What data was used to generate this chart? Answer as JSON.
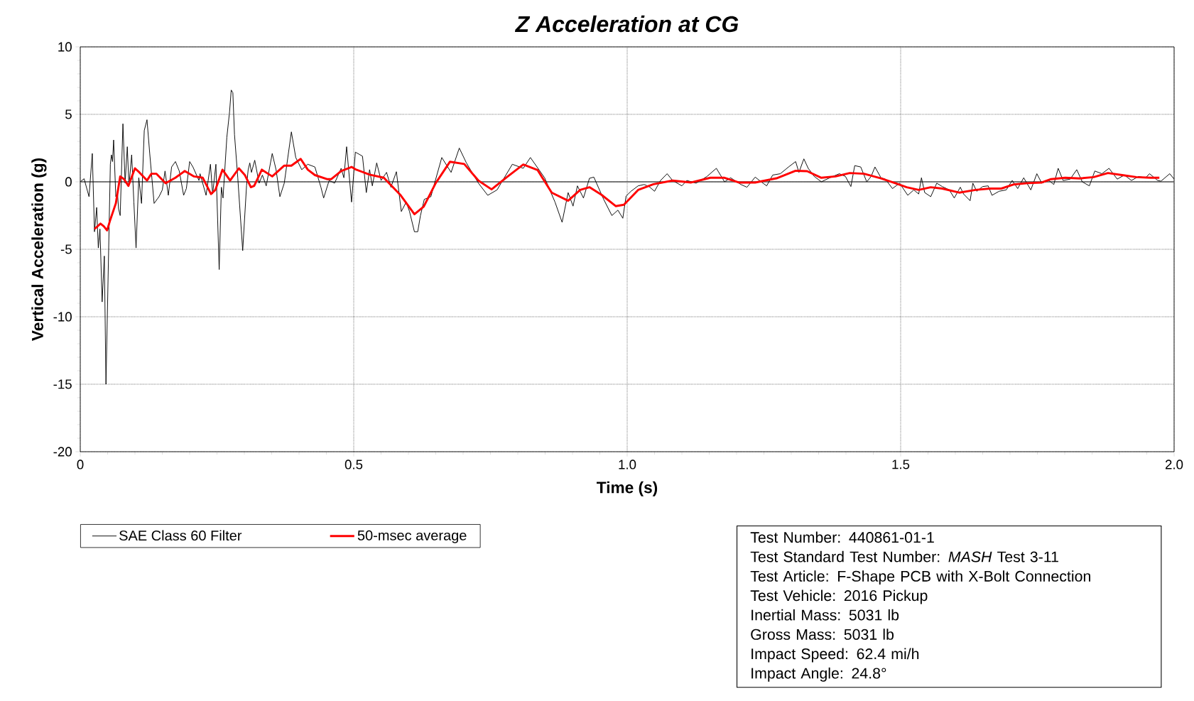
{
  "chart_data": {
    "type": "line",
    "title": "Z Acceleration at CG",
    "xlabel": "Time (s)",
    "ylabel": "Vertical Acceleration (g)",
    "xlim": [
      0,
      2.0
    ],
    "ylim": [
      -20,
      10
    ],
    "xticks": [
      0,
      {
        "value": 0.5,
        "label": "0.5"
      },
      {
        "value": 1.0,
        "label": "1.0"
      },
      {
        "value": 1.5,
        "label": "1.5"
      },
      {
        "value": 2.0,
        "label": "2.0"
      }
    ],
    "yticks": [
      -20,
      -15,
      -10,
      -5,
      0,
      5,
      10
    ],
    "grid": true,
    "legend": "bottom left",
    "marker": "none",
    "line_style": "solid",
    "ref_lines": [
      {
        "axis": "y",
        "value": 0,
        "color": "#555555"
      }
    ],
    "annotations": [
      "Test Number: 440861-01-1",
      "Test Standard Test Number: *MASH* Test 3-11",
      "Test Article: F-Shape PCB with X-Bolt Connection",
      "Test Vehicle: 2016 Pickup",
      "Inertial Mass: 5031 lb",
      "Gross Mass: 5031 lb",
      "Impact Speed: 62.4 mi/h",
      "Impact Angle: 24.8°"
    ],
    "series": [
      {
        "name": "SAE Class 60 Filter",
        "color": "#000000",
        "x": [
          0,
          0.007,
          0.016,
          0.022,
          0.026,
          0.03,
          0.033,
          0.036,
          0.04,
          0.044,
          0.047,
          0.055,
          0.057,
          0.059,
          0.061,
          0.065,
          0.068,
          0.07,
          0.073,
          0.078,
          0.082,
          0.086,
          0.089,
          0.094,
          0.098,
          0.102,
          0.107,
          0.112,
          0.117,
          0.122,
          0.127,
          0.135,
          0.144,
          0.15,
          0.155,
          0.161,
          0.167,
          0.174,
          0.181,
          0.189,
          0.194,
          0.2,
          0.206,
          0.217,
          0.219,
          0.23,
          0.238,
          0.242,
          0.248,
          0.254,
          0.258,
          0.261,
          0.268,
          0.273,
          0.276,
          0.279,
          0.282,
          0.288,
          0.297,
          0.304,
          0.307,
          0.31,
          0.313,
          0.319,
          0.327,
          0.333,
          0.34,
          0.351,
          0.358,
          0.365,
          0.373,
          0.386,
          0.394,
          0.405,
          0.416,
          0.429,
          0.44,
          0.445,
          0.455,
          0.465,
          0.477,
          0.482,
          0.487,
          0.496,
          0.503,
          0.516,
          0.523,
          0.529,
          0.534,
          0.542,
          0.55,
          0.56,
          0.568,
          0.578,
          0.587,
          0.596,
          0.602,
          0.611,
          0.617,
          0.622,
          0.629,
          0.641,
          0.661,
          0.678,
          0.693,
          0.706,
          0.728,
          0.745,
          0.762,
          0.79,
          0.81,
          0.823,
          0.849,
          0.868,
          0.881,
          0.892,
          0.901,
          0.909,
          0.92,
          0.931,
          0.939,
          0.957,
          0.972,
          0.983,
          0.992,
          0.998,
          1.007,
          1.02,
          1.031,
          1.04,
          1.05,
          1.061,
          1.073,
          1.083,
          1.1,
          1.109,
          1.126,
          1.146,
          1.163,
          1.178,
          1.189,
          1.208,
          1.219,
          1.234,
          1.245,
          1.255,
          1.266,
          1.28,
          1.295,
          1.308,
          1.314,
          1.323,
          1.331,
          1.342,
          1.355,
          1.373,
          1.388,
          1.399,
          1.409,
          1.416,
          1.427,
          1.438,
          1.446,
          1.453,
          1.464,
          1.472,
          1.485,
          1.498,
          1.513,
          1.524,
          1.533,
          1.538,
          1.544,
          1.555,
          1.566,
          1.576,
          1.589,
          1.598,
          1.609,
          1.615,
          1.627,
          1.632,
          1.639,
          1.65,
          1.66,
          1.667,
          1.68,
          1.693,
          1.704,
          1.714,
          1.725,
          1.738,
          1.749,
          1.758,
          1.771,
          1.78,
          1.788,
          1.797,
          1.81,
          1.822,
          1.832,
          1.845,
          1.855,
          1.868,
          1.881,
          1.896,
          1.909,
          1.922,
          1.935,
          1.948,
          1.955,
          1.97,
          1.976,
          1.992,
          2.0
        ],
        "values": [
          0,
          0.23,
          -1.1,
          2.1,
          -3.7,
          -1.9,
          -4.9,
          -3.5,
          -8.9,
          -5.5,
          -15.0,
          1.3,
          2.0,
          1.5,
          3.1,
          -1.1,
          -0.8,
          -2.0,
          -2.5,
          4.3,
          -0.1,
          2.6,
          -0.3,
          2.0,
          -1.5,
          -4.9,
          0.3,
          -1.6,
          3.8,
          4.6,
          2.1,
          -1.6,
          -1.1,
          -0.6,
          0.8,
          -1.0,
          1.1,
          1.5,
          0.8,
          -1.0,
          -0.5,
          1.5,
          1.1,
          0.1,
          0.6,
          -1.0,
          1.3,
          -0.9,
          1.3,
          -6.5,
          -0.4,
          -1.2,
          3.3,
          5.2,
          6.8,
          6.6,
          3.5,
          0.3,
          -5.1,
          -0.3,
          0.9,
          1.4,
          0.7,
          1.6,
          -0.1,
          0.5,
          -0.3,
          2.1,
          0.9,
          -1.1,
          -0.1,
          3.7,
          1.8,
          0.9,
          1.3,
          1.1,
          -0.4,
          -1.2,
          0.1,
          -0.1,
          1.0,
          0.3,
          2.6,
          -1.5,
          2.2,
          1.9,
          -0.8,
          0.9,
          -0.3,
          1.4,
          0.1,
          0.7,
          -0.4,
          0.75,
          -2.2,
          -1.5,
          -2.2,
          -3.7,
          -3.7,
          -2.5,
          -1.3,
          -1.1,
          1.8,
          0.7,
          2.5,
          1.4,
          -0.1,
          -1.0,
          -0.6,
          1.3,
          1.0,
          1.8,
          0.3,
          -1.5,
          -3.0,
          -0.8,
          -1.8,
          -0.3,
          -1.2,
          0.26,
          0.35,
          -1.3,
          -2.5,
          -2.1,
          -2.7,
          -1.05,
          -0.7,
          -0.3,
          -0.2,
          -0.35,
          -0.7,
          0.1,
          0.6,
          0.1,
          -0.3,
          0.1,
          -0.1,
          0.4,
          1.0,
          0,
          0.3,
          -0.2,
          -0.4,
          0.35,
          0,
          -0.3,
          0.5,
          0.6,
          1.1,
          1.5,
          0.7,
          1.7,
          1.0,
          0.4,
          0,
          0.35,
          0.6,
          0.4,
          -0.35,
          1.2,
          1.1,
          0,
          0.4,
          1.1,
          0.3,
          0.2,
          -0.5,
          -0.1,
          -1.0,
          -0.6,
          -0.9,
          0.3,
          -0.8,
          -1.1,
          -0.1,
          -0.35,
          -0.6,
          -1.2,
          -0.4,
          -0.9,
          -1.4,
          -0.1,
          -0.7,
          -0.35,
          -0.3,
          -1.0,
          -0.7,
          -0.6,
          0.1,
          -0.5,
          0.3,
          -0.6,
          0.6,
          -0.1,
          0.1,
          -0.2,
          1.0,
          0.1,
          0.2,
          0.9,
          0,
          -0.3,
          0.8,
          0.6,
          1.0,
          0.2,
          0.5,
          0.1,
          0.4,
          0.3,
          0.6,
          0.1,
          0.05,
          0.6,
          0.2
        ]
      },
      {
        "name": "50-msec average",
        "color": "#ff0000",
        "x": [
          0.026,
          0.037,
          0.043,
          0.049,
          0.055,
          0.065,
          0.073,
          0.08,
          0.088,
          0.1,
          0.108,
          0.122,
          0.13,
          0.139,
          0.156,
          0.174,
          0.191,
          0.208,
          0.224,
          0.239,
          0.247,
          0.26,
          0.274,
          0.29,
          0.301,
          0.312,
          0.318,
          0.332,
          0.351,
          0.373,
          0.386,
          0.403,
          0.416,
          0.429,
          0.451,
          0.459,
          0.477,
          0.496,
          0.503,
          0.529,
          0.555,
          0.585,
          0.611,
          0.628,
          0.65,
          0.676,
          0.702,
          0.728,
          0.752,
          0.78,
          0.81,
          0.836,
          0.862,
          0.892,
          0.914,
          0.931,
          0.953,
          0.979,
          0.994,
          1.02,
          1.048,
          1.083,
          1.117,
          1.152,
          1.178,
          1.204,
          1.234,
          1.273,
          1.308,
          1.329,
          1.355,
          1.381,
          1.407,
          1.433,
          1.464,
          1.49,
          1.511,
          1.533,
          1.555,
          1.576,
          1.607,
          1.637,
          1.663,
          1.684,
          1.706,
          1.732,
          1.758,
          1.775,
          1.801,
          1.827,
          1.853,
          1.879,
          1.905,
          1.931,
          1.957,
          1.973
        ],
        "values": [
          -3.5,
          -3.1,
          -3.3,
          -3.6,
          -2.8,
          -1.6,
          0.4,
          0.2,
          -0.3,
          1.0,
          0.7,
          0.1,
          0.6,
          0.6,
          -0.1,
          0.3,
          0.8,
          0.4,
          0.3,
          -0.9,
          -0.6,
          0.9,
          0.1,
          1.0,
          0.5,
          -0.4,
          -0.3,
          0.9,
          0.4,
          1.2,
          1.2,
          1.7,
          0.9,
          0.5,
          0.2,
          0.2,
          0.8,
          1.1,
          0.93,
          0.53,
          0.3,
          -0.96,
          -2.4,
          -1.84,
          -0.09,
          1.49,
          1.32,
          0.09,
          -0.56,
          0.35,
          1.28,
          0.88,
          -0.8,
          -1.4,
          -0.6,
          -0.4,
          -0.96,
          -1.8,
          -1.7,
          -0.6,
          -0.18,
          0.09,
          -0.05,
          0.3,
          0.3,
          -0.05,
          -0.05,
          0.26,
          0.82,
          0.79,
          0.3,
          0.4,
          0.65,
          0.6,
          0.26,
          -0.1,
          -0.4,
          -0.6,
          -0.4,
          -0.5,
          -0.8,
          -0.6,
          -0.5,
          -0.5,
          -0.2,
          -0.1,
          -0.05,
          0.2,
          0.3,
          0.25,
          0.35,
          0.65,
          0.5,
          0.35,
          0.3,
          0.3
        ]
      }
    ]
  }
}
